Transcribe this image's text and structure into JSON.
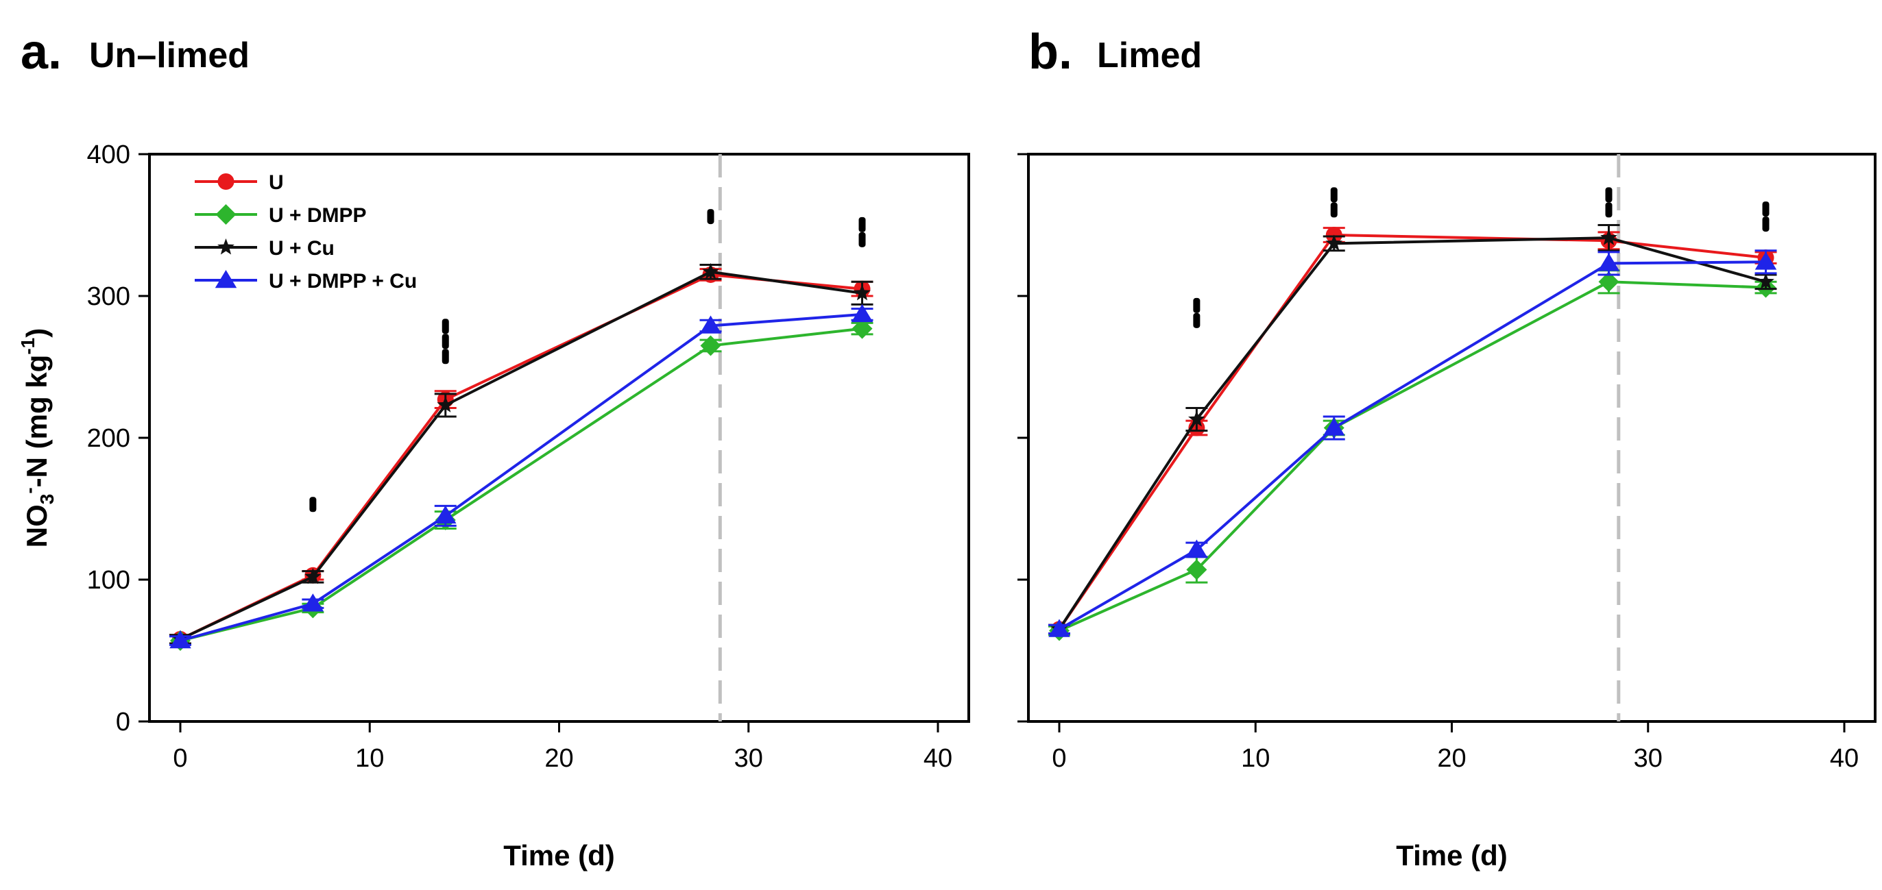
{
  "colors": {
    "U": "#e8191c",
    "U + DMPP": "#2db52d",
    "U + Cu": "#111111",
    "U + DMPP + Cu": "#1f24e8",
    "dashed_line": "#c0c0c0",
    "sig_marks": "#000000"
  },
  "chart_data": [
    {
      "type": "line",
      "panel_letter": "a.",
      "title": "Un–limed",
      "xlabel": "Time (d)",
      "ylabel": "NO3--N (mg kg-1)",
      "ylabel_parts": {
        "main": "NO",
        "sub": "3",
        "sup": "-",
        "mid": "-N (mg kg",
        "sup2": "-1",
        "end": ")"
      },
      "xlim": [
        0,
        40
      ],
      "ylim": [
        0,
        400
      ],
      "xticks": [
        0,
        10,
        20,
        30,
        40
      ],
      "yticks": [
        0,
        100,
        200,
        300,
        400
      ],
      "xtick_labels": [
        "0",
        "10",
        "20",
        "30",
        "40"
      ],
      "ytick_labels": [
        "0",
        "100",
        "200",
        "300",
        "400"
      ],
      "show_y_labels": true,
      "vline_x": 28.5,
      "x": [
        0,
        7,
        14,
        28,
        36
      ],
      "legend_position": "top-left",
      "series": [
        {
          "name": "U",
          "marker": "circle",
          "values": [
            58,
            103,
            227,
            315,
            305
          ],
          "errors": [
            3,
            3,
            6,
            4,
            5
          ]
        },
        {
          "name": "U + DMPP",
          "marker": "diamond",
          "values": [
            57,
            80,
            142,
            265,
            277
          ],
          "errors": [
            3,
            3,
            6,
            4,
            4
          ]
        },
        {
          "name": "U + Cu",
          "marker": "star",
          "values": [
            58,
            102,
            223,
            317,
            302
          ],
          "errors": [
            3,
            4,
            8,
            5,
            8
          ]
        },
        {
          "name": "U + DMPP + Cu",
          "marker": "triangle",
          "values": [
            57,
            83,
            145,
            279,
            287
          ],
          "errors": [
            3,
            3,
            7,
            4,
            4
          ]
        }
      ],
      "significance_marks": [
        {
          "x": 7,
          "y": 153,
          "count": 1
        },
        {
          "x": 14,
          "y": 268,
          "count": 3
        },
        {
          "x": 28,
          "y": 356,
          "count": 1
        },
        {
          "x": 36,
          "y": 345,
          "count": 2
        }
      ]
    },
    {
      "type": "line",
      "panel_letter": "b.",
      "title": "Limed",
      "xlabel": "Time (d)",
      "ylabel": "",
      "xlim": [
        0,
        40
      ],
      "ylim": [
        0,
        400
      ],
      "xticks": [
        0,
        10,
        20,
        30,
        40
      ],
      "yticks": [
        0,
        100,
        200,
        300,
        400
      ],
      "xtick_labels": [
        "0",
        "10",
        "20",
        "30",
        "40"
      ],
      "ytick_labels": [],
      "show_y_labels": false,
      "vline_x": 28.5,
      "x": [
        0,
        7,
        14,
        28,
        36
      ],
      "legend_position": "none",
      "series": [
        {
          "name": "U",
          "marker": "circle",
          "values": [
            65,
            207,
            343,
            339,
            327
          ],
          "errors": [
            3,
            5,
            5,
            6,
            4
          ]
        },
        {
          "name": "U + DMPP",
          "marker": "diamond",
          "values": [
            64,
            107,
            207,
            310,
            306
          ],
          "errors": [
            3,
            9,
            5,
            8,
            4
          ]
        },
        {
          "name": "U + Cu",
          "marker": "star",
          "values": [
            65,
            213,
            337,
            341,
            310
          ],
          "errors": [
            3,
            8,
            5,
            9,
            5
          ]
        },
        {
          "name": "U + DMPP + Cu",
          "marker": "triangle",
          "values": [
            65,
            121,
            207,
            323,
            324
          ],
          "errors": [
            3,
            5,
            8,
            8,
            8
          ]
        }
      ],
      "significance_marks": [
        {
          "x": 7,
          "y": 288,
          "count": 2
        },
        {
          "x": 14,
          "y": 366,
          "count": 2
        },
        {
          "x": 28,
          "y": 366,
          "count": 2
        },
        {
          "x": 36,
          "y": 356,
          "count": 2
        }
      ]
    }
  ]
}
